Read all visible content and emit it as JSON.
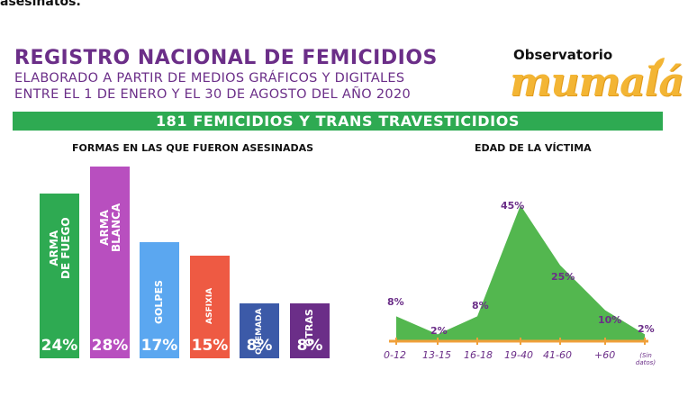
{
  "header": {
    "cut_text": "asesinatos.",
    "title": "REGISTRO NACIONAL DE FEMICIDIOS",
    "subtitle_1": "ELABORADO A PARTIR DE MEDIOS GRÁFICOS Y DIGITALES",
    "subtitle_2": "ENTRE EL 1 DE ENERO Y EL 30 DE AGOSTO DEL AÑO 2020",
    "logo_top": "Observatorio",
    "logo_word": "mumalá"
  },
  "banner": "181 FEMICIDIOS Y TRANS TRAVESTICIDIOS",
  "colors": {
    "purple": "#6b2e88",
    "green": "#2eaa52",
    "light_green": "#53b74f",
    "orange_axis": "#f0a03a",
    "logo_yellow": "#f3b534"
  },
  "chart_data": [
    {
      "type": "bar",
      "title": "FORMAS EN LAS QUE FUERON ASESINADAS",
      "categories": [
        "ARMA\nDE FUEGO",
        "ARMA\nBLANCA",
        "GOLPES",
        "ASFIXIA",
        "QUEMADA",
        "OTRAS"
      ],
      "values": [
        24,
        28,
        17,
        15,
        8,
        8
      ],
      "value_labels": [
        "24%",
        "28%",
        "17%",
        "15%",
        "8%",
        "8%"
      ],
      "colors": [
        "#2eaa52",
        "#b84fbf",
        "#5ba7f0",
        "#ee5a43",
        "#3c5aa8",
        "#6b2e88"
      ],
      "ylim": [
        0,
        28
      ]
    },
    {
      "type": "area",
      "title": "EDAD DE LA VÍCTIMA",
      "categories": [
        "0-12",
        "13-15",
        "16-18",
        "19-40",
        "41-60",
        "+60",
        "(Sin datos)"
      ],
      "values": [
        8,
        2,
        8,
        45,
        25,
        10,
        2
      ],
      "value_labels": [
        "8%",
        "2%",
        "8%",
        "45%",
        "25%",
        "10%",
        "2%"
      ],
      "ylim": [
        0,
        45
      ]
    }
  ]
}
